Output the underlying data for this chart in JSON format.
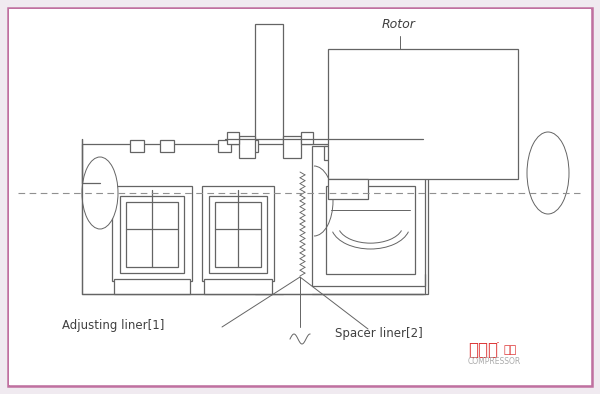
{
  "bg_color": "#f0eaf0",
  "inner_bg": "#ffffff",
  "border_color": "#c070a0",
  "line_color": "#646464",
  "dash_color": "#909090",
  "label_color": "#404040",
  "label_rotor": "Rotor",
  "label_adj": "Adjusting liner[1]",
  "label_spacer": "Spacer liner[2]",
  "wm_cn": "压缩机",
  "wm_suffix": "杂志",
  "wm_en": "COMPRESSOR",
  "wm_color": "#dd3333",
  "wm_gray": "#aaaaaa",
  "fig_width": 6.0,
  "fig_height": 3.94,
  "dpi": 100
}
